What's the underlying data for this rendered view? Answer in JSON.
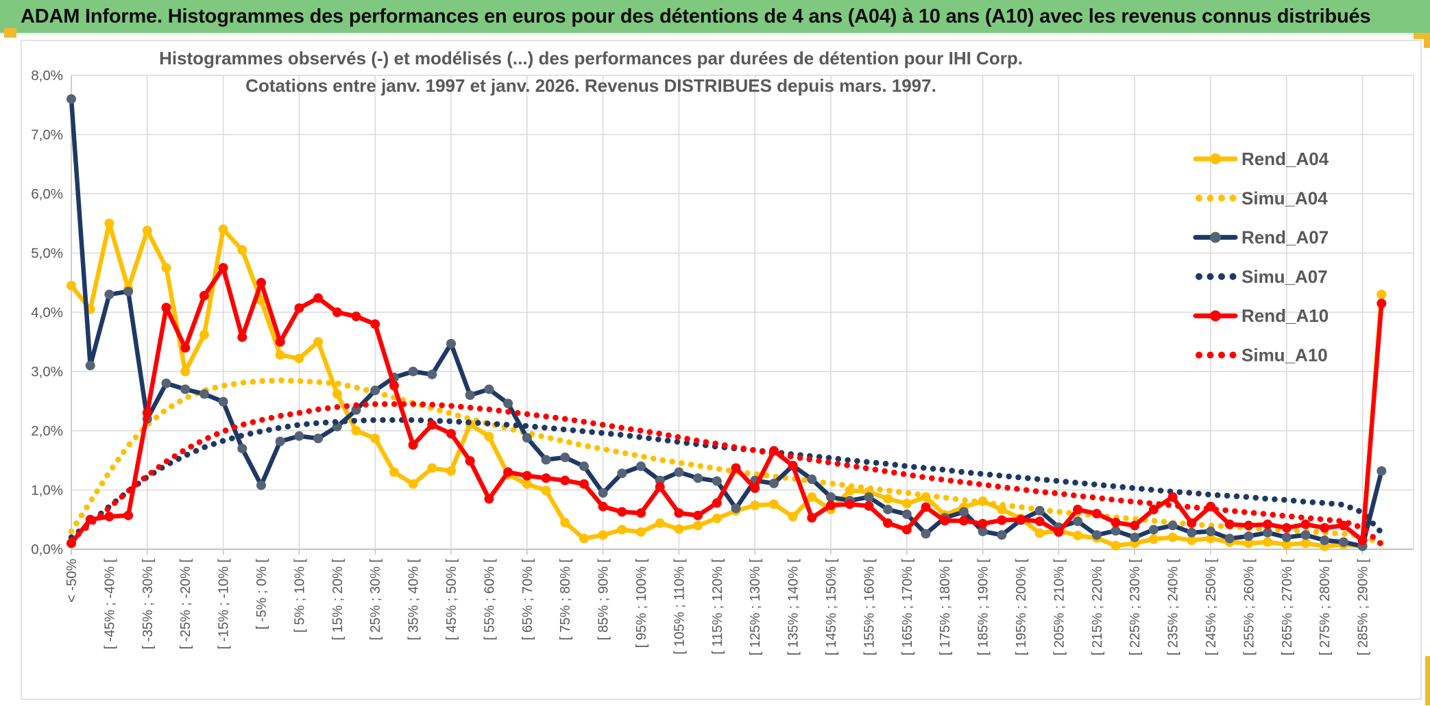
{
  "banner": {
    "title": "ADAM Informe. Histogrammes des performances en euros pour des détentions de 4 ans (A04) à 10 ans (A10) avec les revenus connus distribués",
    "bg_color": "#7EC97F",
    "text_color": "#0b0b0b",
    "accent_color": "#F0B92E"
  },
  "chart": {
    "title_line1": "Histogrammes observés (-) et modélisés (...) des performances par durées de détention pour IHI Corp.",
    "title_line2": "Cotations entre janv. 1997 et janv. 2026. Revenus DISTRIBUES depuis mars. 1997.",
    "title_color": "#595959",
    "axis_label_color": "#595959",
    "gridline_color": "#d9d9d9",
    "axis_line_color": "#c3c3c3",
    "y_tick_labels": [
      "0,0%",
      "1,0%",
      "2,0%",
      "3,0%",
      "4,0%",
      "5,0%",
      "6,0%",
      "7,0%",
      "8,0%"
    ],
    "chart_data": {
      "type": "line",
      "title": "Histogrammes observés (-) et modélisés (...) des performances par durées de détention pour IHI Corp.",
      "subtitle": "Cotations entre janv. 1997 et janv. 2026. Revenus DISTRIBUES depuis mars. 1997.",
      "xlabel": "",
      "ylabel": "",
      "y_unit": "%",
      "ylim": [
        0,
        8
      ],
      "grid": true,
      "legend_position": "right",
      "categories_note": "70 bins of 5% width; axis labels are shown for every other bin only; empty string = unlabeled bin",
      "categories": [
        "< -50%",
        "",
        "[ -45% ; -40% [",
        "",
        "[ -35% ; -30% [",
        "",
        "[ -25% ; -20% [",
        "",
        "[ -15% ; -10% [",
        "",
        "[ -5% ; 0% [",
        "",
        "[ 5% ; 10% [",
        "",
        "[ 15% ; 20% [",
        "",
        "[ 25% ; 30% [",
        "",
        "[ 35% ; 40% [",
        "",
        "[ 45% ; 50% [",
        "",
        "[ 55% ; 60% [",
        "",
        "[ 65% ; 70% [",
        "",
        "[ 75% ; 80% [",
        "",
        "[ 85% ; 90% [",
        "",
        "[ 95% ; 100% [",
        "",
        "[ 105% ; 110% [",
        "",
        "[ 115% ; 120% [",
        "",
        "[ 125% ; 130% [",
        "",
        "[ 135% ; 140% [",
        "",
        "[ 145% ; 150% [",
        "",
        "[ 155% ; 160% [",
        "",
        "[ 165% ; 170% [",
        "",
        "[ 175% ; 180% [",
        "",
        "[ 185% ; 190% [",
        "",
        "[ 195% ; 200% [",
        "",
        "[ 205% ; 210% [",
        "",
        "[ 215% ; 220% [",
        "",
        "[ 225% ; 230% [",
        "",
        "[ 235% ; 240% [",
        "",
        "[ 245% ; 250% [",
        "",
        "[ 255% ; 260% [",
        "",
        "[ 265% ; 270% [",
        "",
        "[ 275% ; 280% [",
        "",
        "[ 285% ; 290% [",
        ""
      ],
      "series": [
        {
          "name": "Rend_A04",
          "style": "solid",
          "color": "#FFC000",
          "marker_color": "#FFC000",
          "values": [
            4.45,
            4.05,
            5.5,
            4.4,
            5.38,
            4.75,
            3.0,
            3.62,
            5.4,
            5.05,
            4.2,
            3.28,
            3.22,
            3.5,
            2.62,
            2.0,
            1.87,
            1.3,
            1.1,
            1.37,
            1.32,
            2.11,
            1.9,
            1.26,
            1.1,
            0.99,
            0.45,
            0.18,
            0.24,
            0.33,
            0.29,
            0.44,
            0.34,
            0.4,
            0.52,
            0.65,
            0.74,
            0.76,
            0.55,
            0.88,
            0.67,
            0.99,
            0.97,
            0.85,
            0.77,
            0.88,
            0.58,
            0.71,
            0.81,
            0.67,
            0.52,
            0.27,
            0.31,
            0.23,
            0.19,
            0.06,
            0.1,
            0.17,
            0.2,
            0.15,
            0.18,
            0.12,
            0.1,
            0.12,
            0.08,
            0.1,
            0.05,
            0.08,
            0.05,
            4.3
          ]
        },
        {
          "name": "Simu_A04",
          "style": "dotted",
          "color": "#FFC000",
          "values": [
            0.3,
            0.8,
            1.3,
            1.75,
            2.1,
            2.36,
            2.55,
            2.68,
            2.76,
            2.81,
            2.84,
            2.85,
            2.84,
            2.82,
            2.8,
            2.73,
            2.65,
            2.56,
            2.47,
            2.38,
            2.29,
            2.2,
            2.12,
            2.04,
            1.96,
            1.89,
            1.82,
            1.75,
            1.69,
            1.63,
            1.57,
            1.51,
            1.46,
            1.41,
            1.36,
            1.31,
            1.27,
            1.23,
            1.19,
            1.15,
            1.11,
            1.07,
            1.03,
            0.99,
            0.95,
            0.91,
            0.87,
            0.83,
            0.79,
            0.75,
            0.71,
            0.67,
            0.63,
            0.6,
            0.57,
            0.54,
            0.51,
            0.48,
            0.45,
            0.42,
            0.4,
            0.38,
            0.36,
            0.34,
            0.32,
            0.3,
            0.28,
            0.26,
            0.22,
            0.1
          ]
        },
        {
          "name": "Rend_A07",
          "style": "solid",
          "color": "#1F3864",
          "marker_color": "#566377",
          "values": [
            7.6,
            3.1,
            4.3,
            4.35,
            2.2,
            2.8,
            2.7,
            2.62,
            2.49,
            1.7,
            1.08,
            1.82,
            1.91,
            1.87,
            2.07,
            2.35,
            2.68,
            2.9,
            3.0,
            2.95,
            3.47,
            2.6,
            2.7,
            2.46,
            1.88,
            1.51,
            1.55,
            1.4,
            0.95,
            1.28,
            1.4,
            1.16,
            1.3,
            1.2,
            1.15,
            0.69,
            1.16,
            1.11,
            1.41,
            1.18,
            0.88,
            0.82,
            0.88,
            0.67,
            0.59,
            0.26,
            0.53,
            0.63,
            0.3,
            0.24,
            0.49,
            0.65,
            0.37,
            0.47,
            0.24,
            0.31,
            0.2,
            0.33,
            0.4,
            0.28,
            0.3,
            0.18,
            0.22,
            0.28,
            0.2,
            0.24,
            0.15,
            0.12,
            0.05,
            1.32
          ]
        },
        {
          "name": "Simu_A07",
          "style": "dotted",
          "color": "#1F3864",
          "values": [
            0.2,
            0.45,
            0.72,
            0.98,
            1.22,
            1.42,
            1.58,
            1.72,
            1.83,
            1.92,
            1.99,
            2.05,
            2.1,
            2.13,
            2.15,
            2.17,
            2.18,
            2.18,
            2.18,
            2.17,
            2.16,
            2.14,
            2.12,
            2.1,
            2.08,
            2.05,
            2.02,
            1.99,
            1.96,
            1.93,
            1.89,
            1.85,
            1.81,
            1.77,
            1.73,
            1.7,
            1.67,
            1.64,
            1.6,
            1.57,
            1.54,
            1.5,
            1.47,
            1.44,
            1.4,
            1.37,
            1.34,
            1.3,
            1.27,
            1.24,
            1.21,
            1.18,
            1.15,
            1.12,
            1.09,
            1.06,
            1.03,
            1.0,
            0.97,
            0.95,
            0.92,
            0.9,
            0.88,
            0.85,
            0.83,
            0.8,
            0.78,
            0.75,
            0.62,
            0.28
          ]
        },
        {
          "name": "Rend_A10",
          "style": "solid",
          "color": "#FF0000",
          "marker_color": "#FF0000",
          "values": [
            0.1,
            0.5,
            0.55,
            0.57,
            2.3,
            4.08,
            3.4,
            4.28,
            4.75,
            3.58,
            4.5,
            3.5,
            4.07,
            4.24,
            4.0,
            3.93,
            3.8,
            2.76,
            1.76,
            2.1,
            1.95,
            1.49,
            0.85,
            1.3,
            1.24,
            1.2,
            1.16,
            1.1,
            0.72,
            0.63,
            0.61,
            1.05,
            0.61,
            0.57,
            0.78,
            1.37,
            1.03,
            1.66,
            1.41,
            0.53,
            0.74,
            0.76,
            0.73,
            0.44,
            0.33,
            0.71,
            0.48,
            0.48,
            0.43,
            0.49,
            0.5,
            0.47,
            0.29,
            0.67,
            0.6,
            0.45,
            0.4,
            0.67,
            0.88,
            0.44,
            0.72,
            0.42,
            0.4,
            0.42,
            0.36,
            0.42,
            0.36,
            0.4,
            0.15,
            4.15
          ]
        },
        {
          "name": "Simu_A10",
          "style": "dotted",
          "color": "#FF0000",
          "values": [
            0.15,
            0.42,
            0.7,
            0.98,
            1.24,
            1.48,
            1.68,
            1.85,
            1.99,
            2.1,
            2.18,
            2.25,
            2.3,
            2.36,
            2.4,
            2.43,
            2.45,
            2.45,
            2.45,
            2.44,
            2.42,
            2.39,
            2.36,
            2.32,
            2.28,
            2.24,
            2.2,
            2.15,
            2.1,
            2.05,
            2.0,
            1.95,
            1.89,
            1.83,
            1.78,
            1.72,
            1.67,
            1.61,
            1.56,
            1.51,
            1.46,
            1.41,
            1.36,
            1.31,
            1.26,
            1.21,
            1.17,
            1.13,
            1.09,
            1.05,
            1.01,
            0.97,
            0.94,
            0.9,
            0.87,
            0.83,
            0.8,
            0.77,
            0.74,
            0.71,
            0.68,
            0.65,
            0.62,
            0.59,
            0.56,
            0.53,
            0.5,
            0.47,
            0.36,
            0.08
          ]
        }
      ],
      "legend": [
        "Rend_A04",
        "Simu_A04",
        "Rend_A07",
        "Simu_A07",
        "Rend_A10",
        "Simu_A10"
      ]
    }
  }
}
